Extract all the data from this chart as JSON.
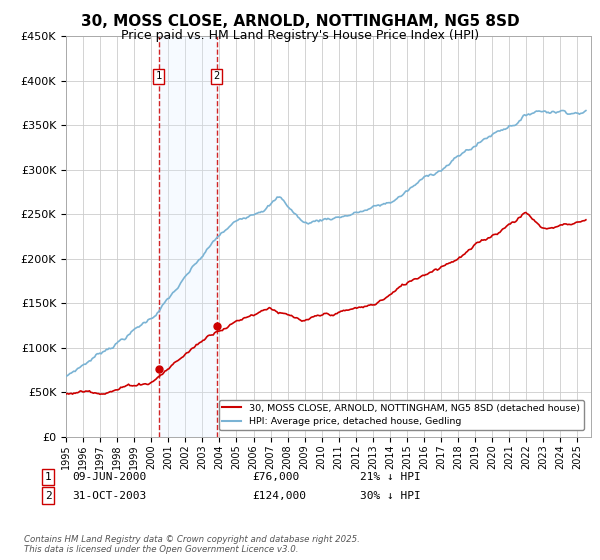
{
  "title": "30, MOSS CLOSE, ARNOLD, NOTTINGHAM, NG5 8SD",
  "subtitle": "Price paid vs. HM Land Registry's House Price Index (HPI)",
  "ylim": [
    0,
    450000
  ],
  "xlim_start": 1995.0,
  "xlim_end": 2025.8,
  "transaction1": {
    "date_num": 2000.44,
    "price": 76000,
    "label": "1",
    "date_str": "09-JUN-2000",
    "price_str": "£76,000",
    "hpi_str": "21% ↓ HPI"
  },
  "transaction2": {
    "date_num": 2003.83,
    "price": 124000,
    "label": "2",
    "date_str": "31-OCT-2003",
    "price_str": "£124,000",
    "hpi_str": "30% ↓ HPI"
  },
  "red_color": "#cc0000",
  "blue_color": "#7ab3d4",
  "shade_color": "#ddeeff",
  "legend_label_red": "30, MOSS CLOSE, ARNOLD, NOTTINGHAM, NG5 8SD (detached house)",
  "legend_label_blue": "HPI: Average price, detached house, Gedling",
  "footnote": "Contains HM Land Registry data © Crown copyright and database right 2025.\nThis data is licensed under the Open Government Licence v3.0.",
  "background_color": "#ffffff",
  "grid_color": "#cccccc",
  "title_fontsize": 11,
  "subtitle_fontsize": 9
}
